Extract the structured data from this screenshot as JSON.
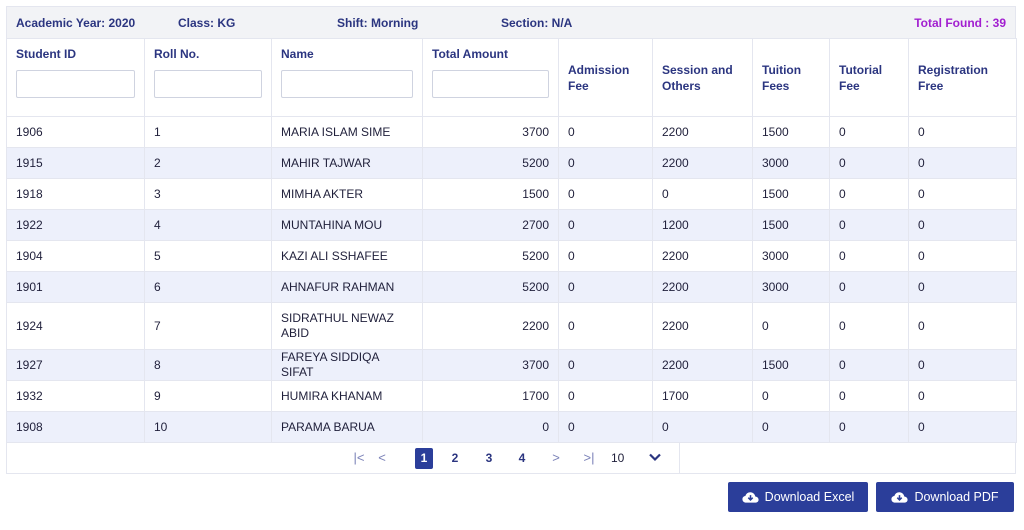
{
  "info": {
    "academic_year": "Academic Year: 2020",
    "class": "Class: KG",
    "shift": "Shift: Morning",
    "section": "Section: N/A",
    "total_found": "Total Found : 39"
  },
  "columns": [
    "Student ID",
    "Roll No.",
    "Name",
    "Total Amount",
    "Admission Fee",
    "Session and Others",
    "Tuition Fees",
    "Tutorial Fee",
    "Registration Free"
  ],
  "rows": [
    {
      "id": "1906",
      "roll": "1",
      "name": "MARIA ISLAM SIME",
      "total": "3700",
      "admission": "0",
      "session": "2200",
      "tuition": "1500",
      "tutorial": "0",
      "registration": "0"
    },
    {
      "id": "1915",
      "roll": "2",
      "name": "MAHIR TAJWAR",
      "total": "5200",
      "admission": "0",
      "session": "2200",
      "tuition": "3000",
      "tutorial": "0",
      "registration": "0"
    },
    {
      "id": "1918",
      "roll": "3",
      "name": "MIMHA AKTER",
      "total": "1500",
      "admission": "0",
      "session": "0",
      "tuition": "1500",
      "tutorial": "0",
      "registration": "0"
    },
    {
      "id": "1922",
      "roll": "4",
      "name": "MUNTAHINA MOU",
      "total": "2700",
      "admission": "0",
      "session": "1200",
      "tuition": "1500",
      "tutorial": "0",
      "registration": "0"
    },
    {
      "id": "1904",
      "roll": "5",
      "name": "KAZI ALI SSHAFEE",
      "total": "5200",
      "admission": "0",
      "session": "2200",
      "tuition": "3000",
      "tutorial": "0",
      "registration": "0"
    },
    {
      "id": "1901",
      "roll": "6",
      "name": "AHNAFUR RAHMAN",
      "total": "5200",
      "admission": "0",
      "session": "2200",
      "tuition": "3000",
      "tutorial": "0",
      "registration": "0"
    },
    {
      "id": "1924",
      "roll": "7",
      "name": "SIDRATHUL NEWAZ ABID",
      "total": "2200",
      "admission": "0",
      "session": "2200",
      "tuition": "0",
      "tutorial": "0",
      "registration": "0"
    },
    {
      "id": "1927",
      "roll": "8",
      "name": "FAREYA SIDDIQA SIFAT",
      "total": "3700",
      "admission": "0",
      "session": "2200",
      "tuition": "1500",
      "tutorial": "0",
      "registration": "0"
    },
    {
      "id": "1932",
      "roll": "9",
      "name": "HUMIRA KHANAM",
      "total": "1700",
      "admission": "0",
      "session": "1700",
      "tuition": "0",
      "tutorial": "0",
      "registration": "0"
    },
    {
      "id": "1908",
      "roll": "10",
      "name": "PARAMA BARUA",
      "total": "0",
      "admission": "0",
      "session": "0",
      "tuition": "0",
      "tutorial": "0",
      "registration": "0"
    }
  ],
  "pagination": {
    "first": "|<",
    "prev": "<",
    "pages": [
      "1",
      "2",
      "3",
      "4"
    ],
    "current_page": "1",
    "next": ">",
    "last": ">|",
    "page_size": "10"
  },
  "buttons": {
    "excel": "Download Excel",
    "pdf": "Download PDF"
  },
  "icons": {
    "download": "cloud-download-icon",
    "dropdown": "chevron-down-icon"
  },
  "colors": {
    "primary": "#2b3e9a",
    "header_text": "#2b3580",
    "total_found": "#a21fd0",
    "row_alt": "#edf0fb"
  }
}
